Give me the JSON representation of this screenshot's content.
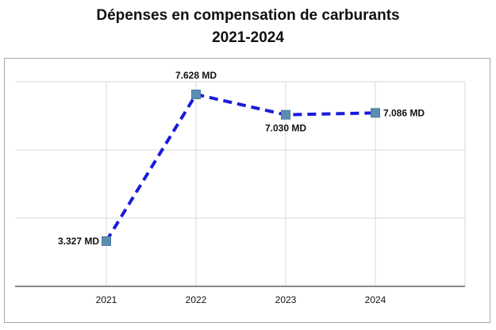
{
  "chart_data": {
    "type": "line",
    "title_line1": "Dépenses en compensation de carburants",
    "title_line2": "2021-2024",
    "xlabel": "",
    "ylabel": "",
    "categories": [
      "2021",
      "2022",
      "2023",
      "2024"
    ],
    "values": [
      3.327,
      7.628,
      7.03,
      7.086
    ],
    "data_labels": [
      "3.327 MD",
      "7.628 MD",
      "7.030 MD",
      "7.086 MD"
    ],
    "ylim": [
      2.0,
      8.0
    ],
    "y_gridlines": [
      2.0,
      4.0,
      6.0,
      8.0
    ],
    "grid": true,
    "line_style": "dashed",
    "colors": {
      "line": "#1a1adb",
      "marker": "#5b8db0",
      "grid": "#d9d9d9",
      "axis": "#404040",
      "frame": "#a6a6a6"
    }
  }
}
